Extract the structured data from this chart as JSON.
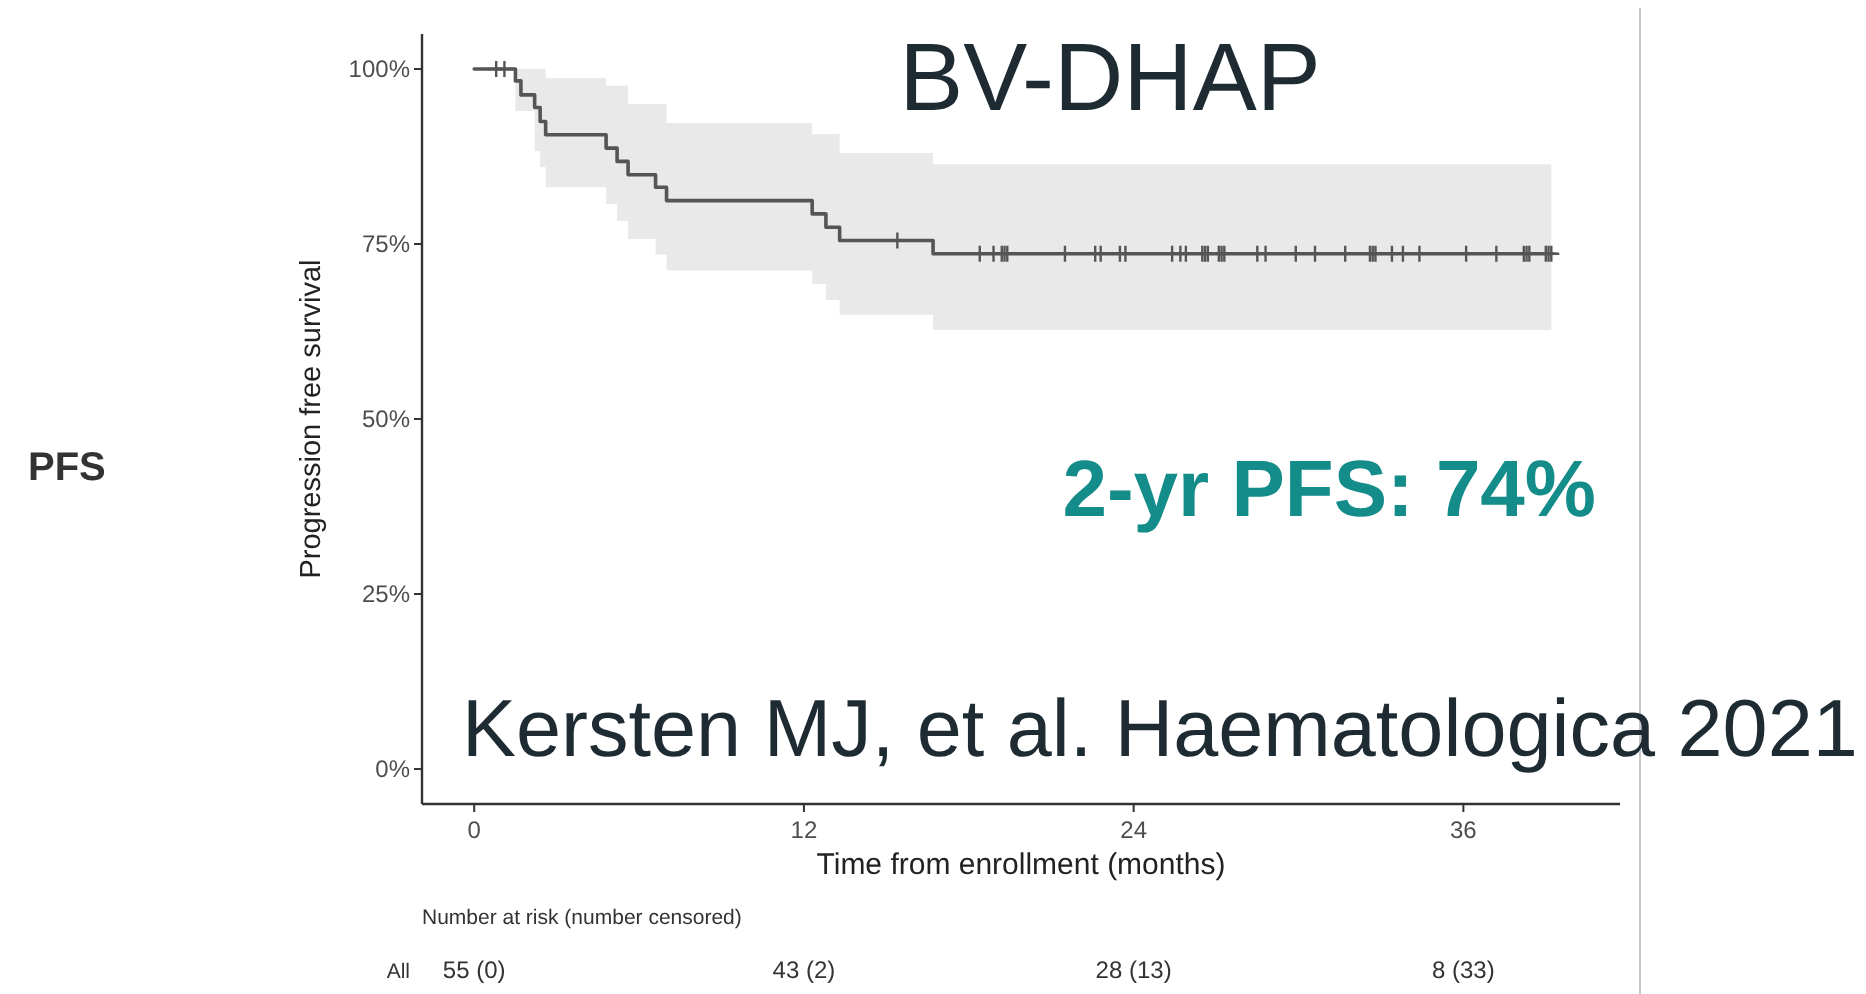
{
  "chart_data": {
    "type": "step",
    "title": "BV-DHAP",
    "xlabel": "Time from enrollment (months)",
    "ylabel": "Progression free survival",
    "xlim": [
      -1.9,
      41.7
    ],
    "xticks": [
      0,
      12,
      24,
      36
    ],
    "ylim": [
      -5,
      105
    ],
    "yticks": [
      {
        "value": 0,
        "label": "0%"
      },
      {
        "value": 25,
        "label": "25%"
      },
      {
        "value": 50,
        "label": "50%"
      },
      {
        "value": 75,
        "label": "75%"
      },
      {
        "value": 100,
        "label": "100%"
      }
    ],
    "series": [
      {
        "color": "#555555",
        "x": [
          0,
          1.5,
          1.7,
          2.2,
          2.4,
          2.6,
          4.8,
          5.2,
          5.6,
          6.6,
          7.0,
          12.3,
          12.8,
          13.3,
          16.7,
          39.2
        ],
        "values": [
          100,
          98.3,
          96.3,
          94.5,
          92.5,
          90.6,
          88.7,
          86.8,
          84.9,
          83.1,
          81.2,
          79.3,
          77.4,
          75.5,
          73.6,
          73.6
        ],
        "lower": [
          100,
          94.0,
          94.0,
          88.3,
          86.0,
          83.1,
          80.7,
          78.3,
          75.7,
          73.5,
          71.2,
          69.3,
          67.0,
          64.9,
          62.7,
          62.7
        ],
        "upper": [
          100,
          100,
          100,
          100,
          100,
          98.7,
          97.6,
          97.6,
          95.0,
          95.0,
          92.3,
          90.7,
          90.7,
          88.0,
          86.4,
          86.4
        ]
      },
      {
        "type": "scatter",
        "color": "#555555",
        "marker": "cross",
        "x": [
          0.8,
          1.1,
          15.4,
          18.4,
          18.9,
          19.2,
          19.3,
          19.4,
          21.5,
          22.6,
          22.8,
          23.5,
          23.7,
          25.4,
          25.7,
          25.9,
          26.5,
          26.6,
          26.7,
          27.1,
          27.2,
          27.3,
          28.5,
          28.8,
          29.9,
          30.6,
          31.7,
          32.6,
          32.7,
          32.8,
          33.4,
          33.8,
          34.4,
          36.1,
          37.2,
          38.2,
          38.3,
          38.4,
          39.0,
          39.1,
          39.2
        ],
        "values": [
          100,
          100,
          75.5,
          73.6,
          73.6,
          73.6,
          73.6,
          73.6,
          73.6,
          73.6,
          73.6,
          73.6,
          73.6,
          73.6,
          73.6,
          73.6,
          73.6,
          73.6,
          73.6,
          73.6,
          73.6,
          73.6,
          73.6,
          73.6,
          73.6,
          73.6,
          73.6,
          73.6,
          73.6,
          73.6,
          73.6,
          73.6,
          73.6,
          73.6,
          73.6,
          73.6,
          73.6,
          73.6,
          73.6,
          73.6,
          73.6
        ]
      }
    ],
    "annotations": [
      "PFS",
      "2-yr PFS: 74%",
      "Kersten MJ, et al. Haematologica 2021",
      "Number at risk (number censored)",
      "All",
      "55 (0)",
      "43 (2)",
      "28 (13)",
      "8 (33)"
    ]
  }
}
